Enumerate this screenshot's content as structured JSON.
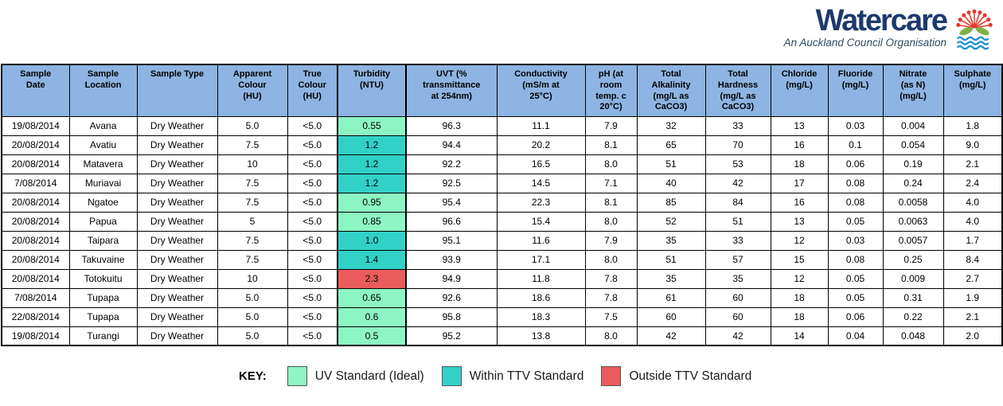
{
  "logo": {
    "brand": "Watercare",
    "tagline": "An Auckland Council Organisation"
  },
  "colors": {
    "header_bg": "#8db4e2",
    "brand_navy": "#1d3a6d",
    "tagline_color": "#2d4a63",
    "flower_red": "#e1372c",
    "leaf_green": "#7cb342",
    "wave_blue": "#1d8fce"
  },
  "table": {
    "columns": [
      "Sample\nDate",
      "Sample\nLocation",
      "Sample Type",
      "Apparent\nColour\n(HU)",
      "True\nColour\n(HU)",
      "Turbidity\n(NTU)",
      "UVT (%\ntransmittance\nat 254nm)",
      "Conductivity\n(mS/m at\n25°C)",
      "pH (at\nroom\ntemp. c\n20°C)",
      "Total\nAlkalinity\n(mg/L as\nCaCO3)",
      "Total\nHardness\n(mg/L as\nCaCO3)",
      "Chloride\n(mg/L)",
      "Fluoride\n(mg/L)",
      "Nitrate\n(as N)\n(mg/L)",
      "Sulphate\n(mg/L)"
    ],
    "rows": [
      {
        "cells": [
          "19/08/2014",
          "Avana",
          "Dry Weather",
          "5.0",
          "<5.0",
          "0.55",
          "96.3",
          "11.1",
          "7.9",
          "32",
          "33",
          "13",
          "0.03",
          "0.004",
          "1.8"
        ],
        "turbidity_status": "uv_ideal"
      },
      {
        "cells": [
          "20/08/2014",
          "Avatiu",
          "Dry Weather",
          "7.5",
          "<5.0",
          "1.2",
          "94.4",
          "20.2",
          "8.1",
          "65",
          "70",
          "16",
          "0.1",
          "0.054",
          "9.0"
        ],
        "turbidity_status": "within_ttv"
      },
      {
        "cells": [
          "20/08/2014",
          "Matavera",
          "Dry Weather",
          "10",
          "<5.0",
          "1.2",
          "92.2",
          "16.5",
          "8.0",
          "51",
          "53",
          "18",
          "0.06",
          "0.19",
          "2.1"
        ],
        "turbidity_status": "within_ttv"
      },
      {
        "cells": [
          "7/08/2014",
          "Muriavai",
          "Dry Weather",
          "7.5",
          "<5.0",
          "1.2",
          "92.5",
          "14.5",
          "7.1",
          "40",
          "42",
          "17",
          "0.08",
          "0.24",
          "2.4"
        ],
        "turbidity_status": "within_ttv"
      },
      {
        "cells": [
          "20/08/2014",
          "Ngatoe",
          "Dry Weather",
          "7.5",
          "<5.0",
          "0.95",
          "95.4",
          "22.3",
          "8.1",
          "85",
          "84",
          "16",
          "0.08",
          "0.0058",
          "4.0"
        ],
        "turbidity_status": "uv_ideal"
      },
      {
        "cells": [
          "20/08/2014",
          "Papua",
          "Dry Weather",
          "5",
          "<5.0",
          "0.85",
          "96.6",
          "15.4",
          "8.0",
          "52",
          "51",
          "13",
          "0.05",
          "0.0063",
          "4.0"
        ],
        "turbidity_status": "uv_ideal"
      },
      {
        "cells": [
          "20/08/2014",
          "Taipara",
          "Dry Weather",
          "7.5",
          "<5.0",
          "1.0",
          "95.1",
          "11.6",
          "7.9",
          "35",
          "33",
          "12",
          "0.03",
          "0.0057",
          "1.7"
        ],
        "turbidity_status": "within_ttv"
      },
      {
        "cells": [
          "20/08/2014",
          "Takuvaine",
          "Dry Weather",
          "7.5",
          "<5.0",
          "1.4",
          "93.9",
          "17.1",
          "8.0",
          "51",
          "57",
          "15",
          "0.08",
          "0.25",
          "8.4"
        ],
        "turbidity_status": "within_ttv"
      },
      {
        "cells": [
          "20/08/2014",
          "Totokuitu",
          "Dry Weather",
          "10",
          "<5.0",
          "2.3",
          "94.9",
          "11.8",
          "7.8",
          "35",
          "35",
          "12",
          "0.05",
          "0.009",
          "2.7"
        ],
        "turbidity_status": "outside_ttv"
      },
      {
        "cells": [
          "7/08/2014",
          "Tupapa",
          "Dry Weather",
          "5.0",
          "<5.0",
          "0.65",
          "92.6",
          "18.6",
          "7.8",
          "61",
          "60",
          "18",
          "0.05",
          "0.31",
          "1.9"
        ],
        "turbidity_status": "uv_ideal"
      },
      {
        "cells": [
          "22/08/2014",
          "Tupapa",
          "Dry Weather",
          "5.0",
          "<5.0",
          "0.6",
          "95.8",
          "18.3",
          "7.5",
          "60",
          "60",
          "18",
          "0.06",
          "0.22",
          "2.1"
        ],
        "turbidity_status": "uv_ideal"
      },
      {
        "cells": [
          "19/08/2014",
          "Turangi",
          "Dry Weather",
          "5.0",
          "<5.0",
          "0.5",
          "95.2",
          "13.8",
          "8.0",
          "42",
          "42",
          "14",
          "0.04",
          "0.048",
          "2.0"
        ],
        "turbidity_status": "uv_ideal"
      }
    ]
  },
  "key": {
    "label": "KEY:",
    "items": [
      {
        "id": "uv_ideal",
        "label": "UV Standard (Ideal)",
        "color": "#8df5c3"
      },
      {
        "id": "within_ttv",
        "label": "Within TTV Standard",
        "color": "#31d1c8"
      },
      {
        "id": "outside_ttv",
        "label": "Outside TTV Standard",
        "color": "#ea5c5c"
      }
    ]
  }
}
